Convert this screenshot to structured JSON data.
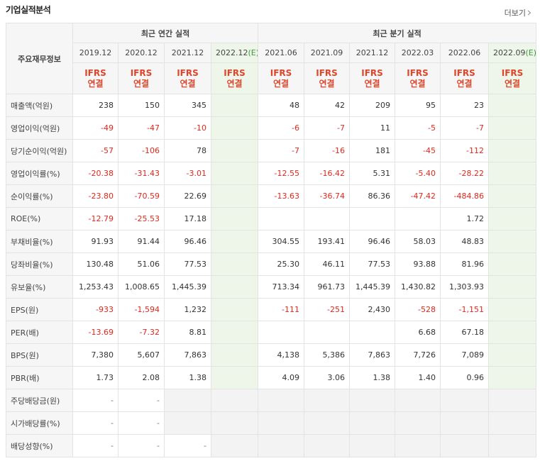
{
  "header": {
    "title": "기업실적분석",
    "more": "더보기"
  },
  "table": {
    "corner": "주요재무정보",
    "groups": [
      {
        "label": "최근 연간 실적",
        "span": 4
      },
      {
        "label": "최근 분기 실적",
        "span": 6
      }
    ],
    "columns": [
      {
        "date": "2019.12",
        "basis": "IFRS",
        "scope": "연결"
      },
      {
        "date": "2020.12",
        "basis": "IFRS",
        "scope": "연결"
      },
      {
        "date": "2021.12",
        "basis": "IFRS",
        "scope": "연결"
      },
      {
        "date": "2022.12",
        "suffix": "(E)",
        "basis": "IFRS",
        "scope": "연결"
      },
      {
        "date": "2021.06",
        "basis": "IFRS",
        "scope": "연결"
      },
      {
        "date": "2021.09",
        "basis": "IFRS",
        "scope": "연결"
      },
      {
        "date": "2021.12",
        "basis": "IFRS",
        "scope": "연결"
      },
      {
        "date": "2022.03",
        "basis": "IFRS",
        "scope": "연결"
      },
      {
        "date": "2022.06",
        "basis": "IFRS",
        "scope": "연결"
      },
      {
        "date": "2022.09",
        "suffix": "(E)",
        "basis": "IFRS",
        "scope": "연결"
      }
    ],
    "rows": [
      {
        "label": "매출액(억원)",
        "values": [
          "238",
          "150",
          "345",
          null,
          "48",
          "42",
          "209",
          "95",
          "23",
          null
        ]
      },
      {
        "label": "영업이익(억원)",
        "values": [
          "-49",
          "-47",
          "-10",
          null,
          "-6",
          "-7",
          "11",
          "-5",
          "-7",
          null
        ]
      },
      {
        "label": "당기순이익(억원)",
        "values": [
          "-57",
          "-106",
          "78",
          null,
          "-7",
          "-16",
          "181",
          "-45",
          "-112",
          null
        ]
      },
      {
        "label": "영업이익률(%)",
        "values": [
          "-20.38",
          "-31.43",
          "-3.01",
          null,
          "-12.55",
          "-16.42",
          "5.31",
          "-5.40",
          "-28.22",
          null
        ]
      },
      {
        "label": "순이익률(%)",
        "values": [
          "-23.80",
          "-70.59",
          "22.69",
          null,
          "-13.63",
          "-36.74",
          "86.36",
          "-47.42",
          "-484.86",
          null
        ]
      },
      {
        "label": "ROE(%)",
        "values": [
          "-12.79",
          "-25.53",
          "17.18",
          null,
          null,
          null,
          null,
          null,
          "1.72",
          null
        ]
      },
      {
        "label": "부채비율(%)",
        "values": [
          "91.93",
          "91.44",
          "96.46",
          null,
          "304.55",
          "193.41",
          "96.46",
          "58.03",
          "48.83",
          null
        ]
      },
      {
        "label": "당좌비율(%)",
        "values": [
          "130.48",
          "51.06",
          "77.53",
          null,
          "25.30",
          "46.11",
          "77.53",
          "93.88",
          "81.96",
          null
        ]
      },
      {
        "label": "유보율(%)",
        "values": [
          "1,253.43",
          "1,008.65",
          "1,445.39",
          null,
          "713.34",
          "961.73",
          "1,445.39",
          "1,430.82",
          "1,303.93",
          null
        ]
      },
      {
        "label": "EPS(원)",
        "values": [
          "-933",
          "-1,594",
          "1,232",
          null,
          "-111",
          "-251",
          "2,430",
          "-528",
          "-1,151",
          null
        ]
      },
      {
        "label": "PER(배)",
        "values": [
          "-13.69",
          "-7.32",
          "8.81",
          null,
          null,
          null,
          null,
          "6.68",
          "67.18",
          null
        ]
      },
      {
        "label": "BPS(원)",
        "values": [
          "7,380",
          "5,607",
          "7,863",
          null,
          "4,138",
          "5,386",
          "7,863",
          "7,726",
          "7,089",
          null
        ]
      },
      {
        "label": "PBR(배)",
        "values": [
          "1.73",
          "2.08",
          "1.38",
          null,
          "4.09",
          "3.06",
          "1.38",
          "1.40",
          "0.96",
          null
        ]
      },
      {
        "label": "주당배당금(원)",
        "values": [
          "-",
          "-",
          null,
          null,
          null,
          null,
          null,
          null,
          null,
          null
        ]
      },
      {
        "label": "시가배당률(%)",
        "values": [
          "-",
          "-",
          null,
          null,
          null,
          null,
          null,
          null,
          null,
          null
        ]
      },
      {
        "label": "배당성향(%)",
        "values": [
          "-",
          "-",
          "-",
          null,
          null,
          null,
          null,
          null,
          null,
          null
        ]
      }
    ]
  }
}
